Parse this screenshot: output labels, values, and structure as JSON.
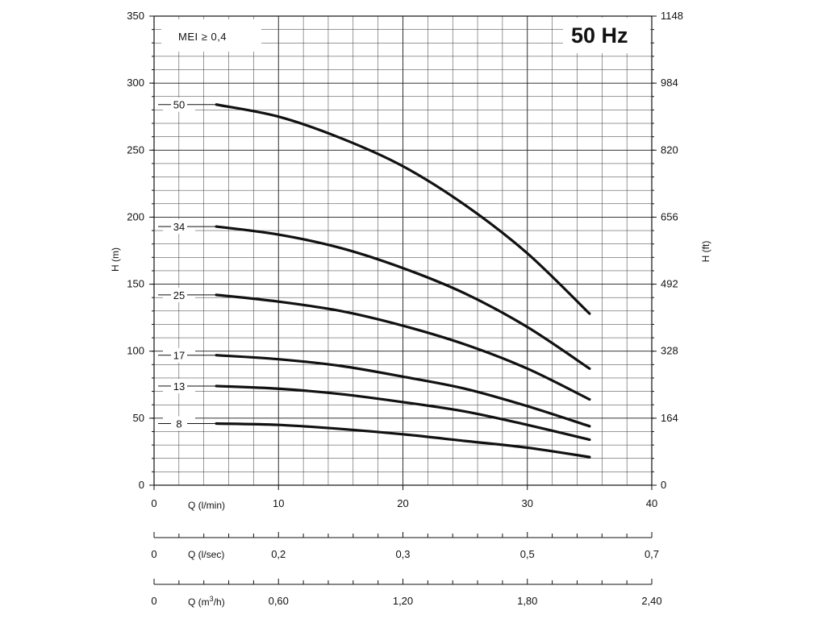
{
  "chart_data": {
    "type": "line",
    "title": "50 Hz",
    "annotation": "MEI ≥ 0,4",
    "ylabel": "H (m)",
    "ylabel_right": "H (ft)",
    "xlabel": "Q (l/min)",
    "xlim": [
      0,
      40
    ],
    "ylim": [
      0,
      350
    ],
    "x_ticks": [
      "0",
      "10",
      "20",
      "30",
      "40"
    ],
    "y_ticks": [
      "0",
      "50",
      "100",
      "150",
      "200",
      "250",
      "300",
      "350"
    ],
    "y_right_ticks": [
      "0",
      "164",
      "328",
      "492",
      "656",
      "820",
      "984",
      "1148"
    ],
    "secondary_axes": [
      {
        "label": "Q (l/sec)",
        "ticks": [
          {
            "x": 0,
            "label": "0"
          },
          {
            "x": 10,
            "label": "0,2"
          },
          {
            "x": 20,
            "label": "0,3"
          },
          {
            "x": 30,
            "label": "0,5"
          },
          {
            "x": 40,
            "label": "0,7"
          }
        ]
      },
      {
        "label": "Q (m³/h)",
        "label_base": "Q (m",
        "label_sup": "3",
        "label_tail": "/h)",
        "ticks": [
          {
            "x": 0,
            "label": "0"
          },
          {
            "x": 10,
            "label": "0,60"
          },
          {
            "x": 20,
            "label": "1,20"
          },
          {
            "x": 30,
            "label": "1,80"
          },
          {
            "x": 40,
            "label": "2,40"
          }
        ]
      }
    ],
    "grid": true,
    "legend": "none",
    "series": [
      {
        "name": "50",
        "x": [
          5,
          10,
          15,
          20,
          25,
          30,
          35
        ],
        "values": [
          284,
          275,
          259,
          238,
          209,
          173,
          128
        ]
      },
      {
        "name": "34",
        "x": [
          5,
          10,
          15,
          20,
          25,
          30,
          35
        ],
        "values": [
          193,
          187,
          177,
          162,
          143,
          118,
          87
        ]
      },
      {
        "name": "25",
        "x": [
          5,
          10,
          15,
          20,
          25,
          30,
          35
        ],
        "values": [
          142,
          137,
          130,
          119,
          105,
          87,
          64
        ]
      },
      {
        "name": "17",
        "x": [
          5,
          10,
          15,
          20,
          25,
          30,
          35
        ],
        "values": [
          97,
          94,
          89,
          81,
          72,
          59,
          44
        ]
      },
      {
        "name": "13",
        "x": [
          5,
          10,
          15,
          20,
          25,
          30,
          35
        ],
        "values": [
          74,
          72,
          68,
          62,
          55,
          45,
          34
        ]
      },
      {
        "name": "8",
        "x": [
          5,
          10,
          15,
          20,
          25,
          30,
          35
        ],
        "values": [
          46,
          45,
          42,
          38,
          33,
          28,
          21
        ]
      }
    ]
  }
}
